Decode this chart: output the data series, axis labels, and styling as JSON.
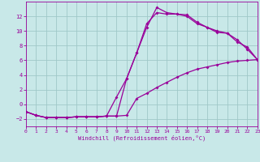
{
  "xlabel": "Windchill (Refroidissement éolien,°C)",
  "background_color": "#c8e8e8",
  "grid_color": "#a0c8c8",
  "line_color": "#990099",
  "xlim": [
    0,
    23
  ],
  "ylim": [
    -3,
    14
  ],
  "xticks": [
    0,
    1,
    2,
    3,
    4,
    5,
    6,
    7,
    8,
    9,
    10,
    11,
    12,
    13,
    14,
    15,
    16,
    17,
    18,
    19,
    20,
    21,
    22,
    23
  ],
  "yticks": [
    -2,
    0,
    2,
    4,
    6,
    8,
    10,
    12
  ],
  "line1_x": [
    0,
    1,
    2,
    3,
    4,
    5,
    6,
    7,
    8,
    9,
    10,
    11,
    12,
    13,
    14,
    15,
    16,
    17,
    18,
    19,
    20,
    21,
    22,
    23
  ],
  "line1_y": [
    -1.0,
    -1.5,
    -1.8,
    -1.8,
    -1.8,
    -1.7,
    -1.7,
    -1.7,
    -1.6,
    -1.6,
    3.5,
    7.0,
    10.5,
    13.2,
    12.5,
    12.3,
    12.2,
    11.2,
    10.5,
    10.0,
    9.7,
    8.5,
    7.8,
    6.1
  ],
  "line2_x": [
    0,
    1,
    2,
    3,
    4,
    5,
    6,
    7,
    8,
    9,
    10,
    11,
    12,
    13,
    14,
    15,
    16,
    17,
    18,
    19,
    20,
    21,
    22,
    23
  ],
  "line2_y": [
    -1.0,
    -1.5,
    -1.8,
    -1.8,
    -1.8,
    -1.7,
    -1.7,
    -1.7,
    -1.6,
    1.0,
    3.5,
    7.0,
    11.0,
    12.5,
    12.3,
    12.3,
    12.0,
    11.0,
    10.5,
    9.8,
    9.7,
    8.8,
    7.5,
    6.1
  ],
  "line3_x": [
    0,
    1,
    2,
    3,
    4,
    5,
    6,
    7,
    8,
    9,
    10,
    11,
    12,
    13,
    14,
    15,
    16,
    17,
    18,
    19,
    20,
    21,
    22,
    23
  ],
  "line3_y": [
    -1.0,
    -1.5,
    -1.8,
    -1.8,
    -1.8,
    -1.7,
    -1.7,
    -1.7,
    -1.6,
    -1.6,
    -1.5,
    0.8,
    1.5,
    2.3,
    3.0,
    3.7,
    4.3,
    4.8,
    5.1,
    5.4,
    5.7,
    5.9,
    6.0,
    6.1
  ]
}
